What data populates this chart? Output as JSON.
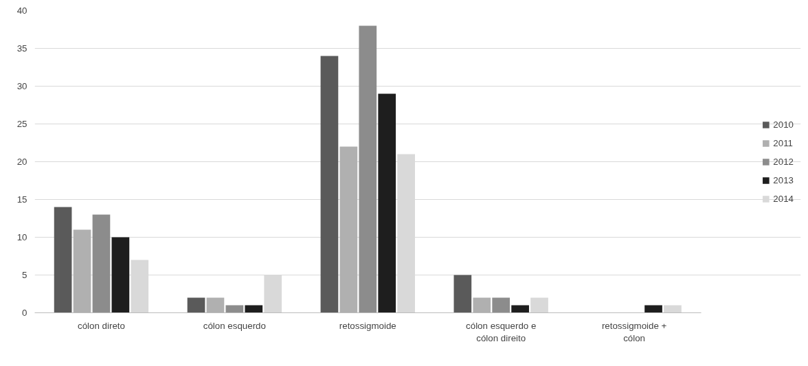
{
  "chart_data": {
    "type": "bar",
    "categories": [
      "cólon direto",
      "cólon esquerdo",
      "retossigmoide",
      "cólon esquerdo e\ncólon direito",
      "retossigmoide +\ncólon"
    ],
    "series": [
      {
        "name": "2010",
        "color": "#5a5a5a",
        "values": [
          14,
          2,
          34,
          5,
          0
        ]
      },
      {
        "name": "2011",
        "color": "#b0b0b0",
        "values": [
          11,
          2,
          22,
          2,
          0
        ]
      },
      {
        "name": "2012",
        "color": "#8c8c8c",
        "values": [
          13,
          1,
          38,
          2,
          0
        ]
      },
      {
        "name": "2013",
        "color": "#1e1e1e",
        "values": [
          10,
          1,
          29,
          1,
          1
        ]
      },
      {
        "name": "2014",
        "color": "#d9d9d9",
        "values": [
          7,
          5,
          21,
          2,
          1
        ]
      }
    ],
    "ylim": [
      0,
      40
    ],
    "yticks": [
      0,
      5,
      10,
      15,
      20,
      25,
      30,
      35,
      40
    ],
    "grid": "y",
    "legend": "right"
  }
}
